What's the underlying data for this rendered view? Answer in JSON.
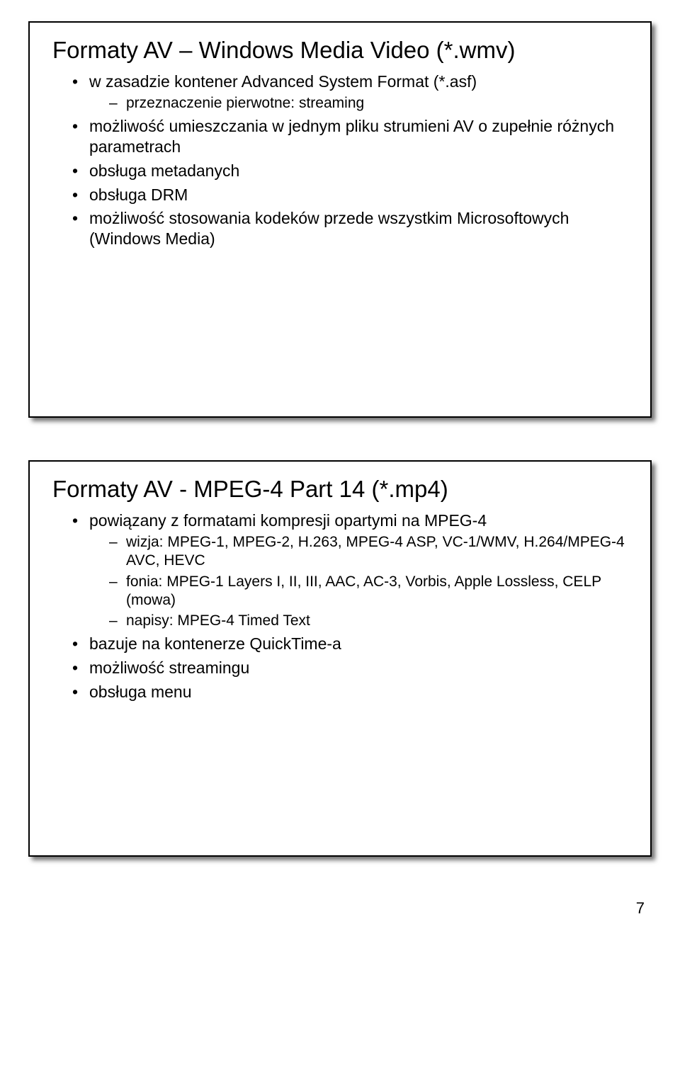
{
  "slide1": {
    "title": "Formaty AV – Windows Media Video (*.wmv)",
    "items": [
      {
        "text": "w zasadzie kontener Advanced System Format (*.asf)",
        "children": [
          {
            "text": "przeznaczenie pierwotne: streaming"
          }
        ]
      },
      {
        "text": "możliwość umieszczania w jednym pliku strumieni AV o zupełnie różnych parametrach"
      },
      {
        "text": "obsługa metadanych"
      },
      {
        "text": "obsługa DRM"
      },
      {
        "text": "możliwość stosowania kodeków przede wszystkim Microsoftowych (Windows Media)"
      }
    ]
  },
  "slide2": {
    "title": "Formaty AV - MPEG-4 Part 14 (*.mp4)",
    "items": [
      {
        "text": "powiązany z formatami kompresji opartymi na MPEG-4",
        "children": [
          {
            "text": "wizja: MPEG-1, MPEG-2, H.263, MPEG-4 ASP, VC-1/WMV, H.264/MPEG-4 AVC, HEVC"
          },
          {
            "text": "fonia: MPEG-1 Layers I, II, III, AAC, AC-3, Vorbis, Apple Lossless, CELP (mowa)"
          },
          {
            "text": "napisy: MPEG-4 Timed Text"
          }
        ]
      },
      {
        "text": "bazuje na kontenerze QuickTime-a"
      },
      {
        "text": "możliwość streamingu"
      },
      {
        "text": "obsługa menu"
      }
    ]
  },
  "page_number": "7"
}
